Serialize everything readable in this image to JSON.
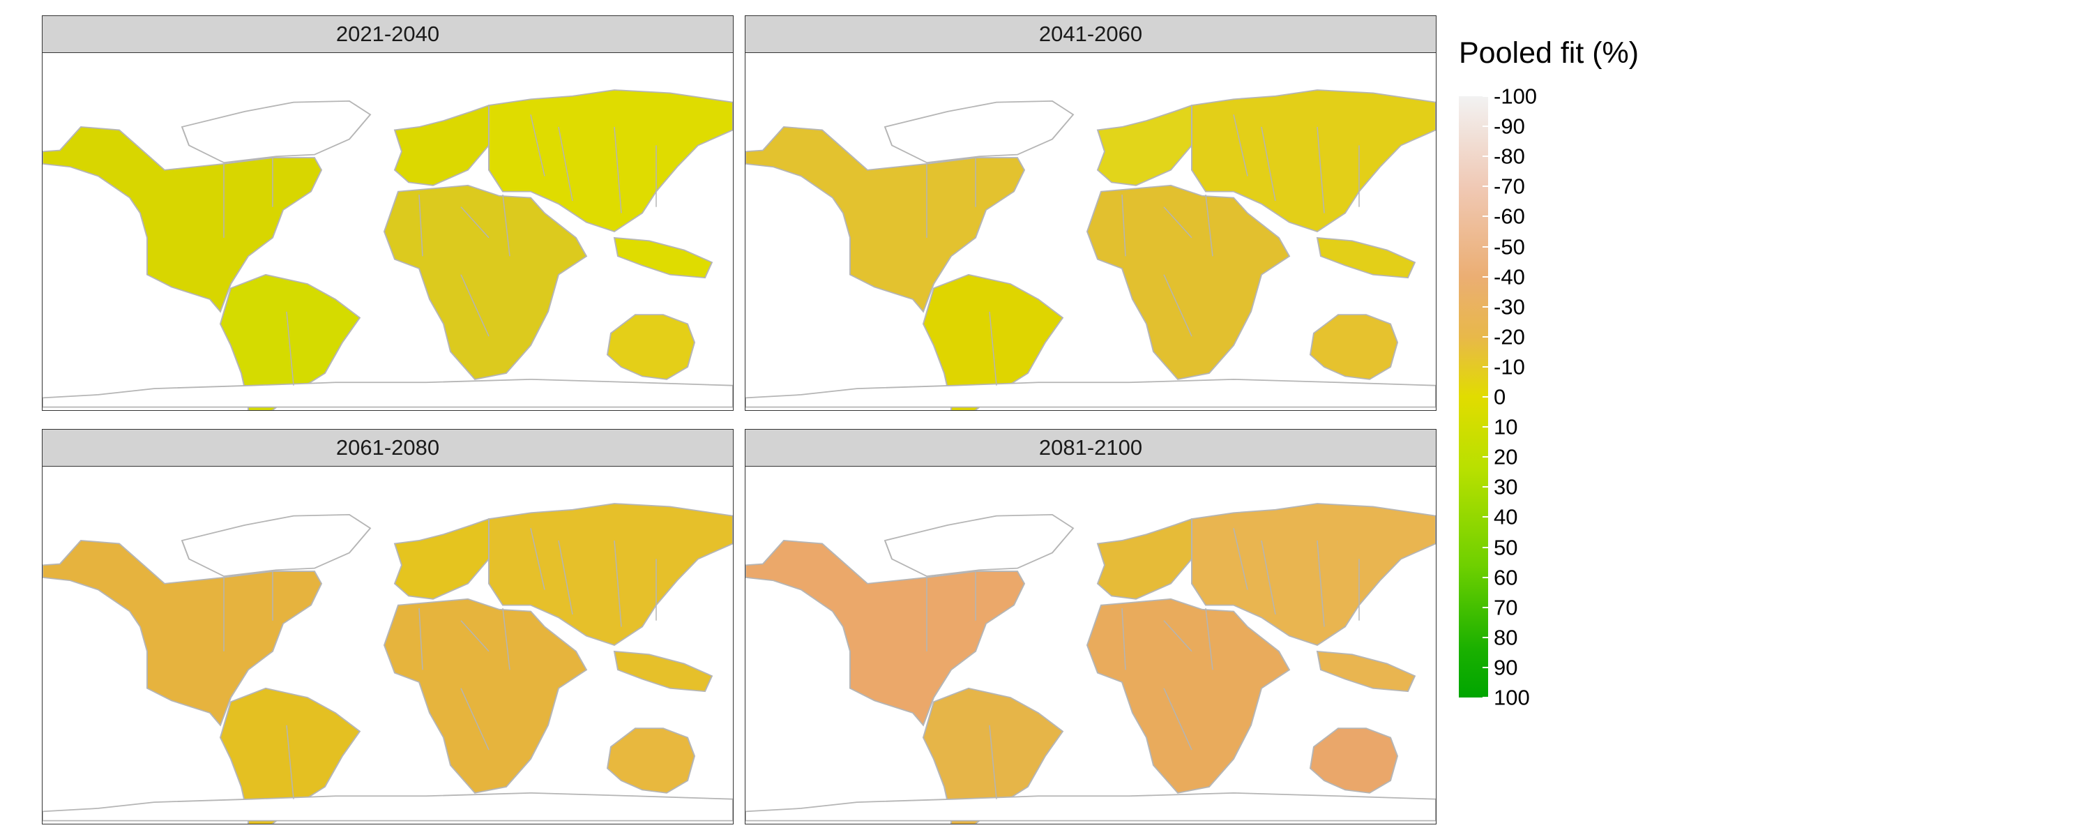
{
  "figure": {
    "legend": {
      "title": "Pooled fit (%)",
      "ticks": [
        "-100",
        "-90",
        "-80",
        "-70",
        "-60",
        "-50",
        "-40",
        "-30",
        "-20",
        "-10",
        "0",
        "10",
        "20",
        "30",
        "40",
        "50",
        "60",
        "70",
        "80",
        "90",
        "100"
      ],
      "colors": [
        "#f2f2f2",
        "#f0c9b5",
        "#ebae73",
        "#e8b84a",
        "#e1dc00",
        "#b8e000",
        "#6fd000",
        "#1ab000",
        "#00a500"
      ]
    },
    "panels": [
      {
        "label": "2021-2040",
        "fills": {
          "na": "#d8d600",
          "sa": "#d5db00",
          "eu": "#dcd800",
          "af": "#dcca1e",
          "as": "#dfdc00",
          "au": "#e4cf18",
          "ant": "#ffffff"
        }
      },
      {
        "label": "2041-2060",
        "fills": {
          "na": "#e3c22f",
          "sa": "#dfd500",
          "eu": "#e2d51a",
          "af": "#e2c02f",
          "as": "#e3cf18",
          "au": "#e6c22e",
          "ant": "#ffffff"
        }
      },
      {
        "label": "2061-2080",
        "fills": {
          "na": "#e6b33e",
          "sa": "#e4c022",
          "eu": "#e5c41f",
          "af": "#e6b43d",
          "as": "#e6c02a",
          "au": "#e8b83e",
          "ant": "#ffffff"
        }
      },
      {
        "label": "2081-2100",
        "fills": {
          "na": "#eba86a",
          "sa": "#e6b548",
          "eu": "#e6bb38",
          "af": "#e9ab5c",
          "as": "#e9b550",
          "au": "#eaa76a",
          "ant": "#ffffff"
        }
      }
    ]
  }
}
